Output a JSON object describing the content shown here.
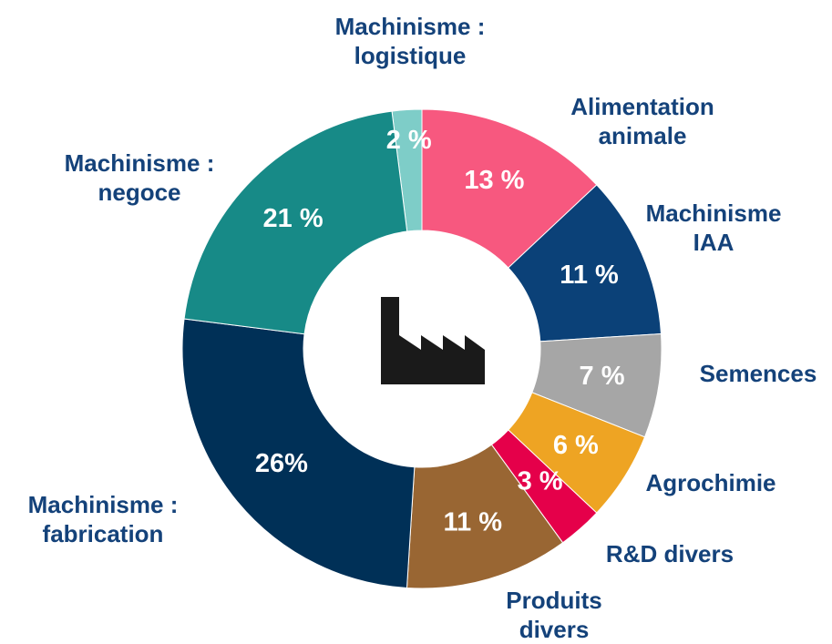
{
  "chart_data": {
    "type": "donut",
    "categories": [
      "Machinisme :\nlogistique",
      "Alimentation\nanimale",
      "Machinisme\nIAA",
      "Semences",
      "Agrochimie",
      "R&D divers",
      "Produits\ndivers",
      "Machinisme :\nfabrication",
      "Machinisme :\nnegoce"
    ],
    "values": [
      2,
      13,
      11,
      7,
      6,
      3,
      11,
      26,
      21
    ],
    "value_labels": [
      "2 %",
      "13 %",
      "11 %",
      "7 %",
      "6 %",
      "3 %",
      "11 %",
      "26%",
      "21 %"
    ],
    "colors": [
      "#7ecdc8",
      "#f7587f",
      "#0b4178",
      "#a6a6a6",
      "#eea423",
      "#e5004a",
      "#996633",
      "#003057",
      "#178a87"
    ]
  }
}
